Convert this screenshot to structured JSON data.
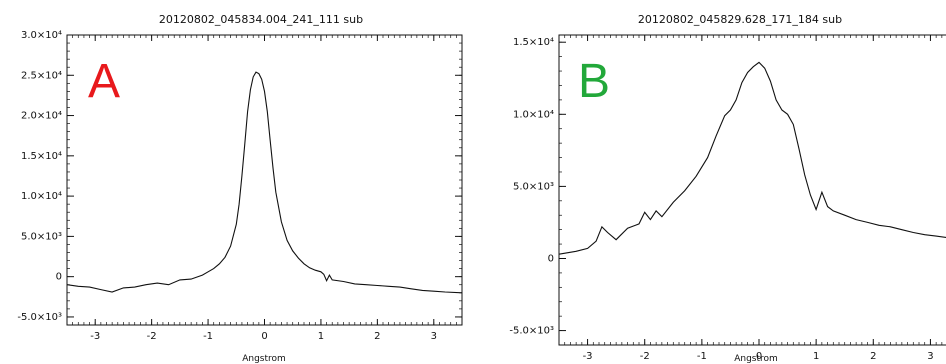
{
  "chart_data": [
    {
      "type": "line",
      "title": "20120802_045834.004_241_111  sub",
      "panel_label": "A",
      "panel_label_color": "#e8191c",
      "xlabel": "Angstrom",
      "ylabel": "",
      "xlim": [
        -3.5,
        3.5
      ],
      "ylim": [
        -6000,
        30000
      ],
      "xticks": [
        -3,
        -2,
        -1,
        0,
        1,
        2,
        3
      ],
      "xtick_labels": [
        "-3",
        "-2",
        "-1",
        "0",
        "1",
        "2",
        "3"
      ],
      "yticks": [
        -5000,
        0,
        5000,
        10000,
        15000,
        20000,
        25000,
        30000
      ],
      "ytick_labels": [
        "-5.0×10³",
        "0",
        "5.0×10³",
        "1.0×10⁴",
        "1.5×10⁴",
        "2.0×10⁴",
        "2.5×10⁴",
        "3.0×10⁴"
      ],
      "grid": false,
      "series": [
        {
          "color": "#111111",
          "x": [
            -3.5,
            -3.3,
            -3.1,
            -2.9,
            -2.7,
            -2.5,
            -2.3,
            -2.1,
            -1.9,
            -1.7,
            -1.5,
            -1.3,
            -1.1,
            -1.0,
            -0.9,
            -0.8,
            -0.7,
            -0.6,
            -0.5,
            -0.45,
            -0.4,
            -0.35,
            -0.3,
            -0.25,
            -0.2,
            -0.15,
            -0.1,
            -0.05,
            0.0,
            0.05,
            0.1,
            0.15,
            0.2,
            0.3,
            0.4,
            0.5,
            0.6,
            0.7,
            0.8,
            0.9,
            1.0,
            1.05,
            1.1,
            1.15,
            1.2,
            1.4,
            1.6,
            1.8,
            2.0,
            2.2,
            2.4,
            2.6,
            2.8,
            3.0,
            3.2,
            3.5
          ],
          "y": [
            -1000,
            -1200,
            -1300,
            -1600,
            -1900,
            -1400,
            -1300,
            -1000,
            -800,
            -1000,
            -400,
            -300,
            200,
            600,
            1000,
            1600,
            2400,
            3800,
            6500,
            9000,
            12500,
            16500,
            20500,
            23200,
            24800,
            25400,
            25200,
            24500,
            23000,
            20500,
            17000,
            13500,
            10500,
            6800,
            4500,
            3200,
            2300,
            1600,
            1100,
            800,
            600,
            300,
            -500,
            200,
            -400,
            -600,
            -900,
            -1000,
            -1100,
            -1200,
            -1300,
            -1500,
            -1700,
            -1800,
            -1900,
            -2000
          ]
        }
      ]
    },
    {
      "type": "line",
      "title": "20120802_045829.628_171_184  sub",
      "panel_label": "B",
      "panel_label_color": "#22a83a",
      "xlabel": "Angstrom",
      "ylabel": "",
      "xlim": [
        -3.5,
        3.5
      ],
      "ylim": [
        -6000,
        15500
      ],
      "xticks": [
        -3,
        -2,
        -1,
        0,
        1,
        2,
        3
      ],
      "xtick_labels": [
        "-3",
        "-2",
        "-1",
        "0",
        "1",
        "2",
        "3"
      ],
      "yticks": [
        -5000,
        0,
        5000,
        10000,
        15000
      ],
      "ytick_labels": [
        "-5.0×10³",
        "0",
        "5.0×10³",
        "1.0×10⁴",
        "1.5×10⁴"
      ],
      "grid": false,
      "series": [
        {
          "color": "#111111",
          "x": [
            -3.5,
            -3.2,
            -3.0,
            -2.85,
            -2.75,
            -2.65,
            -2.5,
            -2.3,
            -2.1,
            -2.0,
            -1.9,
            -1.8,
            -1.7,
            -1.5,
            -1.3,
            -1.1,
            -0.9,
            -0.75,
            -0.6,
            -0.5,
            -0.4,
            -0.3,
            -0.2,
            -0.1,
            0.0,
            0.1,
            0.2,
            0.3,
            0.4,
            0.5,
            0.6,
            0.7,
            0.8,
            0.9,
            1.0,
            1.05,
            1.1,
            1.2,
            1.3,
            1.5,
            1.7,
            1.9,
            2.1,
            2.3,
            2.5,
            2.7,
            2.9,
            3.1,
            3.3,
            3.5
          ],
          "y": [
            300,
            500,
            700,
            1200,
            2200,
            1800,
            1300,
            2100,
            2400,
            3200,
            2700,
            3300,
            2900,
            3900,
            4700,
            5700,
            7000,
            8500,
            9900,
            10300,
            11000,
            12200,
            12900,
            13300,
            13600,
            13200,
            12300,
            11000,
            10300,
            10000,
            9300,
            7600,
            5800,
            4400,
            3400,
            4000,
            4600,
            3600,
            3300,
            3000,
            2700,
            2500,
            2300,
            2200,
            2000,
            1800,
            1650,
            1550,
            1450,
            1400
          ]
        }
      ]
    }
  ]
}
